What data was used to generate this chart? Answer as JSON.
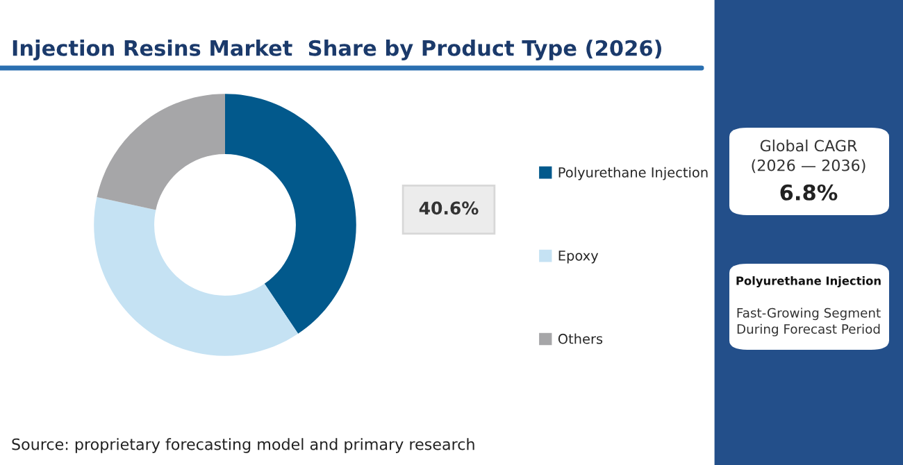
{
  "chart_data": {
    "type": "donut",
    "title": "Injection Resins Market  Share by Product Type (2026)",
    "categories": [
      "Polyurethane Injection",
      "Epoxy",
      "Others"
    ],
    "values": [
      40.6,
      37.8,
      21.6
    ],
    "colors": [
      "#02598c",
      "#c5e2f3",
      "#a6a6a8"
    ],
    "value_labels": [
      "40.6%",
      null,
      null
    ],
    "legend": "right",
    "annotations": [
      "Global CAGR\n(2026 — 2036)",
      "6.8%",
      "Polyurethane Injection",
      "Fast-Growing Segment\nDuring Forecast Period",
      "Source: proprietary forecasting model and primary research"
    ]
  }
}
